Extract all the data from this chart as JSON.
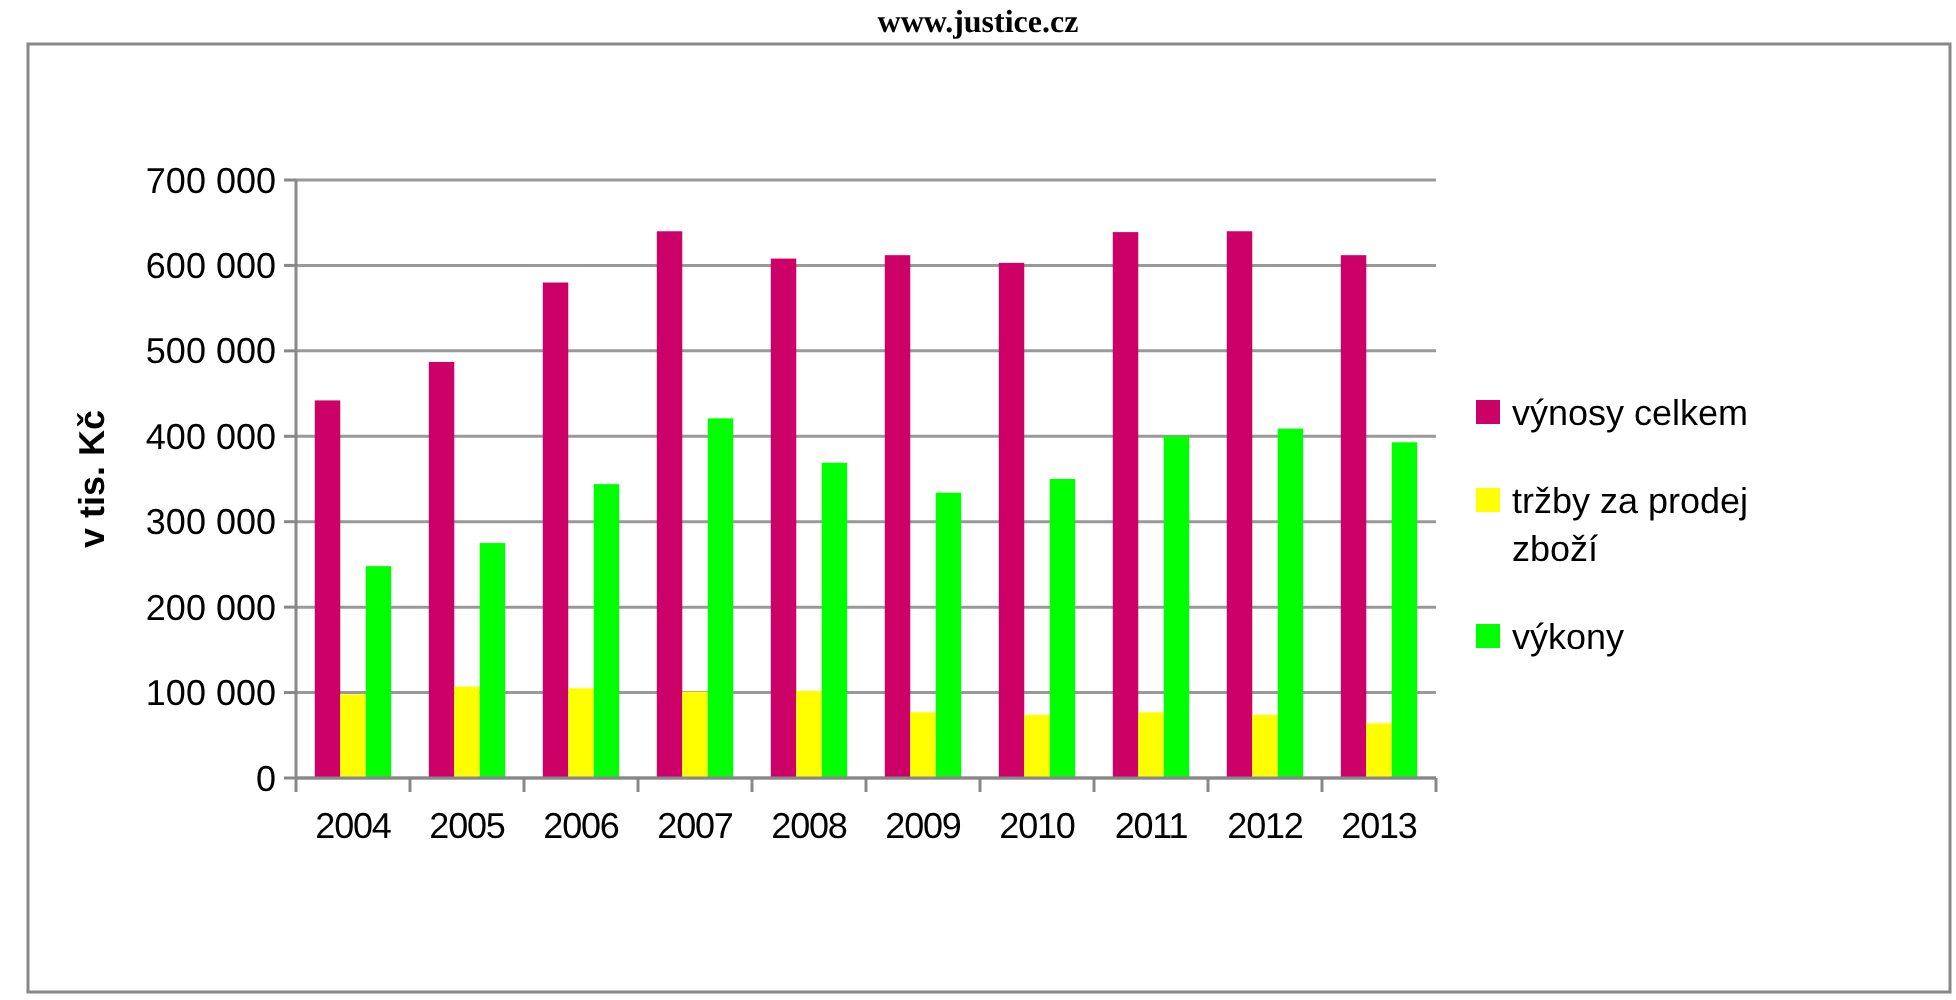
{
  "chart_data": {
    "type": "bar",
    "title": "www.justice.cz",
    "ylabel": "v tis. Kč",
    "categories": [
      "2004",
      "2005",
      "2006",
      "2007",
      "2008",
      "2009",
      "2010",
      "2011",
      "2012",
      "2013"
    ],
    "series": [
      {
        "name": "výnosy celkem",
        "color": "#cc0066",
        "values": [
          442000,
          487000,
          580000,
          640000,
          608000,
          612000,
          603000,
          639000,
          640000,
          612000
        ]
      },
      {
        "name": "tržby za prodej zboží",
        "color": "#ffff00",
        "values": [
          98000,
          107000,
          105000,
          101000,
          102000,
          77000,
          74000,
          77000,
          74000,
          64000
        ]
      },
      {
        "name": "výkony",
        "color": "#00ff00",
        "values": [
          248000,
          275000,
          344000,
          421000,
          369000,
          334000,
          350000,
          400000,
          409000,
          393000
        ]
      }
    ],
    "ylim": [
      0,
      700000
    ],
    "yticks": [
      {
        "value": 0,
        "label": "0"
      },
      {
        "value": 100000,
        "label": "100 000"
      },
      {
        "value": 200000,
        "label": "200 000"
      },
      {
        "value": 300000,
        "label": "300 000"
      },
      {
        "value": 400000,
        "label": "400 000"
      },
      {
        "value": 500000,
        "label": "500 000"
      },
      {
        "value": 600000,
        "label": "600 000"
      },
      {
        "value": 700000,
        "label": "700 000"
      }
    ],
    "grid": "y",
    "legend": "right"
  }
}
